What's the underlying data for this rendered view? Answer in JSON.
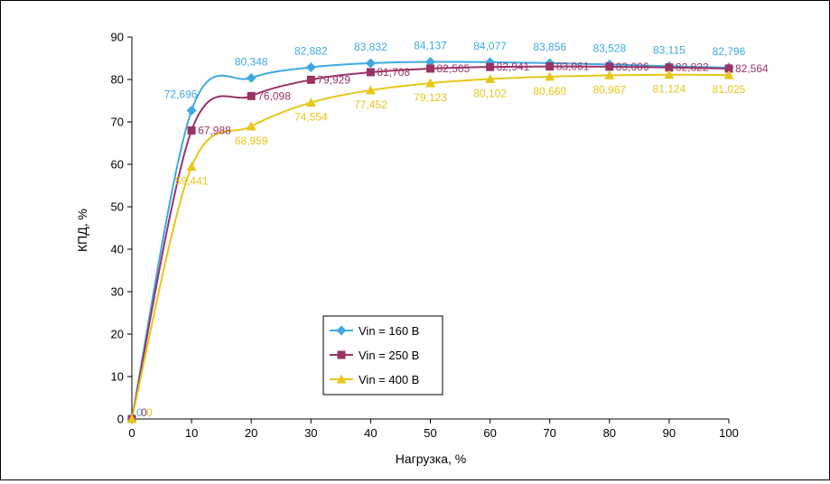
{
  "chart_data": {
    "type": "line",
    "xlabel": "Нагрузка, %",
    "ylabel": "КПД, %",
    "xlim": [
      0,
      100
    ],
    "ylim": [
      0,
      90
    ],
    "x_ticks": [
      "0",
      "10",
      "20",
      "30",
      "40",
      "50",
      "60",
      "70",
      "80",
      "90",
      "100"
    ],
    "y_ticks": [
      "0",
      "10",
      "20",
      "30",
      "40",
      "50",
      "60",
      "70",
      "80",
      "90"
    ],
    "x": [
      0,
      10,
      20,
      30,
      40,
      50,
      60,
      70,
      80,
      90,
      100
    ],
    "legend_position": "center-left",
    "grid": false,
    "series": [
      {
        "name": "Vin = 160 В",
        "color": "#3fa9e0",
        "marker": "diamond",
        "values": [
          0,
          72.696,
          80.348,
          82.882,
          83.832,
          84.137,
          84.077,
          83.856,
          83.528,
          83.115,
          82.796
        ],
        "labels": [
          "0",
          "72,696",
          "80,348",
          "82,882",
          "83,832",
          "84,137",
          "84,077",
          "83,856",
          "83,528",
          "83,115",
          "82,796"
        ]
      },
      {
        "name": "Vin = 250 В",
        "color": "#993366",
        "marker": "square",
        "values": [
          0,
          67.988,
          76.098,
          79.929,
          81.708,
          82.565,
          82.941,
          83.061,
          83.006,
          82.822,
          82.564
        ],
        "labels": [
          "0",
          "67,988",
          "76,098",
          "79,929",
          "81,708",
          "82,565",
          "82,941",
          "83,061",
          "83,006",
          "82,822",
          "82,564"
        ]
      },
      {
        "name": "Vin = 400 В",
        "color": "#e6c619",
        "marker": "triangle",
        "values": [
          0,
          59.441,
          68.959,
          74.554,
          77.452,
          79.123,
          80.102,
          80.66,
          80.987,
          81.124,
          81.025
        ],
        "labels": [
          "0",
          "59,441",
          "68,959",
          "74,554",
          "77,452",
          "79,123",
          "80,102",
          "80,660",
          "80,987",
          "81,124",
          "81,025"
        ]
      }
    ]
  }
}
